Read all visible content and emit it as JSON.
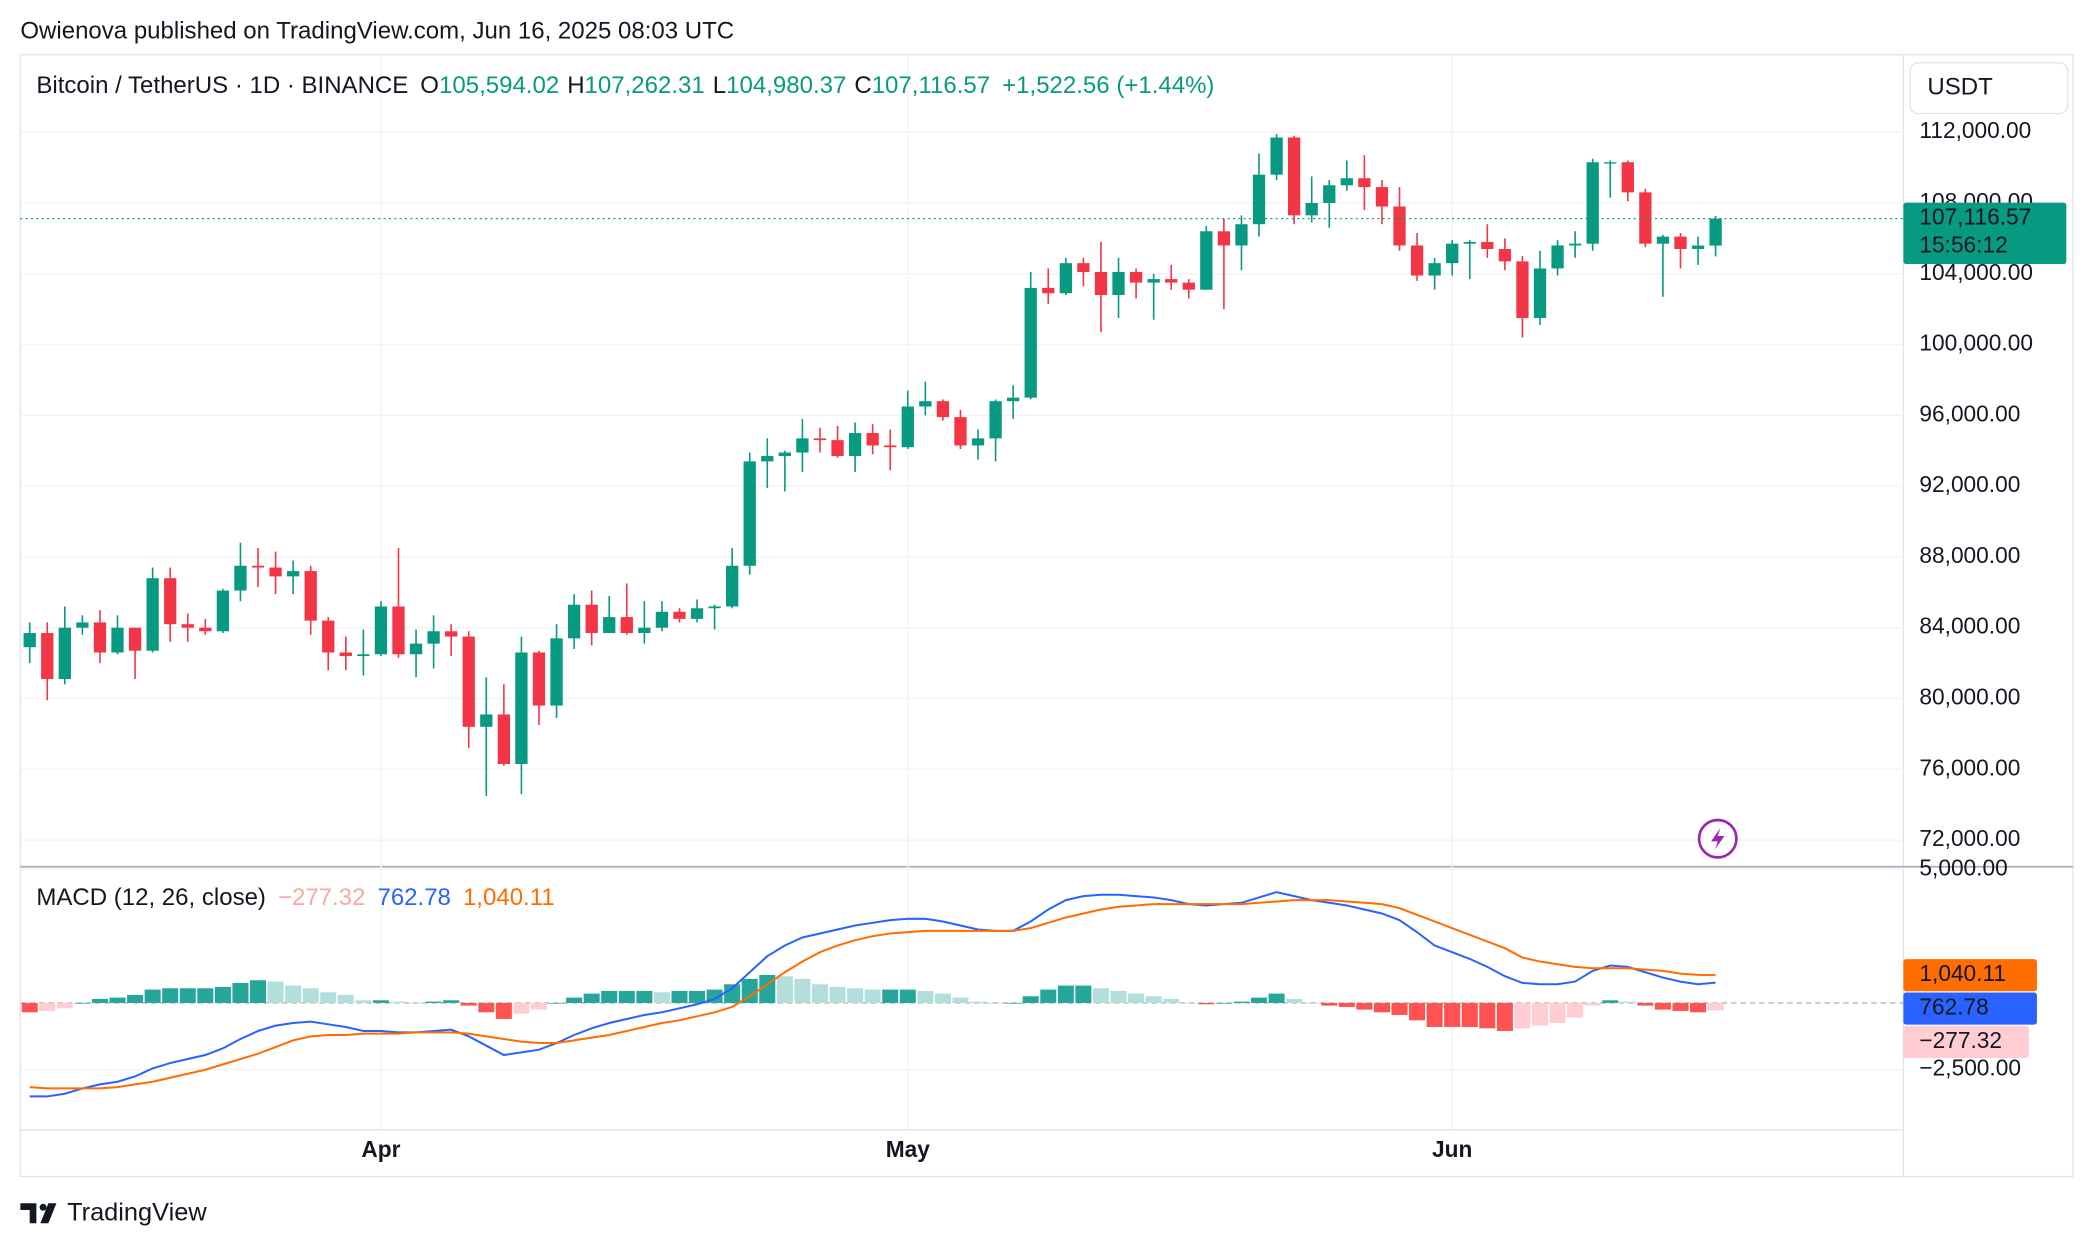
{
  "header": {
    "publisher": "Owienova published on TradingView.com, Jun 16, 2025 08:03 UTC",
    "symbol": "Bitcoin / TetherUS · 1D · BINANCE",
    "ohlc_legend": [
      {
        "key": "O",
        "text": "105,594.02"
      },
      {
        "key": "H",
        "text": "107,262.31"
      },
      {
        "key": "L",
        "text": "104,980.37"
      },
      {
        "key": "C",
        "text": "107,116.57"
      }
    ],
    "change": "+1,522.56 (+1.44%)",
    "currency": "USDT",
    "countdown": "15:56:12"
  },
  "footer": {
    "brand": "TradingView"
  },
  "chart_data": [
    {
      "type": "candlestick",
      "up_color": "#089981",
      "down_color": "#f23645",
      "grid": true,
      "ylim": [
        70570,
        116300
      ],
      "yticks": [
        {
          "value": 112000,
          "label": "112,000.00"
        },
        {
          "value": 108000,
          "label": "108,000.00"
        },
        {
          "value": 104000,
          "label": "104,000.00"
        },
        {
          "value": 100000,
          "label": "100,000.00"
        },
        {
          "value": 96000,
          "label": "96,000.00"
        },
        {
          "value": 92000,
          "label": "92,000.00"
        },
        {
          "value": 88000,
          "label": "88,000.00"
        },
        {
          "value": 84000,
          "label": "84,000.00"
        },
        {
          "value": 80000,
          "label": "80,000.00"
        },
        {
          "value": 76000,
          "label": "76,000.00"
        },
        {
          "value": 72000,
          "label": "72,000.00"
        }
      ],
      "xticks": [
        {
          "value": 20,
          "label": "Apr"
        },
        {
          "value": 50,
          "label": "May"
        },
        {
          "value": 81,
          "label": "Jun"
        }
      ],
      "last_price_label": "107,116.57",
      "open": [
        82900,
        83700,
        81100,
        84000,
        84300,
        82600,
        84000,
        82700,
        86800,
        84200,
        84000,
        83800,
        86100,
        87500,
        87400,
        86900,
        87200,
        84400,
        82600,
        82400,
        82500,
        85200,
        82500,
        83100,
        83800,
        83500,
        78400,
        79100,
        76300,
        82600,
        79600,
        83400,
        85300,
        83700,
        84600,
        83700,
        84000,
        84900,
        84500,
        85100,
        85200,
        87500,
        93400,
        93700,
        93900,
        94700,
        94600,
        93700,
        95000,
        94300,
        94200,
        96500,
        96800,
        95900,
        94300,
        94700,
        96800,
        97000,
        103200,
        102900,
        104600,
        104100,
        102800,
        104100,
        103500,
        103700,
        103500,
        103100,
        106400,
        105600,
        106800,
        109600,
        111700,
        107300,
        108000,
        109000,
        109400,
        108900,
        107800,
        105600,
        103900,
        104600,
        105700,
        105800,
        105400,
        104700,
        101500,
        104300,
        105600,
        105700,
        110250,
        110300,
        108600,
        105700,
        106100,
        105400,
        105594.02
      ],
      "high": [
        84300,
        84300,
        85200,
        84700,
        85000,
        84700,
        84000,
        87400,
        87400,
        84800,
        84500,
        86200,
        88800,
        88500,
        88300,
        87800,
        87500,
        84600,
        83500,
        83900,
        85500,
        88500,
        83900,
        84700,
        84200,
        83800,
        81200,
        80800,
        83500,
        82700,
        84200,
        85900,
        86100,
        85800,
        86500,
        85500,
        85500,
        85100,
        85600,
        85300,
        88500,
        93900,
        94700,
        94000,
        95800,
        95300,
        95400,
        95600,
        95500,
        95200,
        97400,
        97900,
        96900,
        96300,
        95200,
        96900,
        97700,
        104100,
        104300,
        104900,
        104900,
        105800,
        104900,
        104300,
        104000,
        104500,
        103700,
        106700,
        107100,
        107300,
        110800,
        111900,
        111800,
        109500,
        109300,
        110400,
        110700,
        109300,
        108900,
        106300,
        104900,
        105900,
        105900,
        106800,
        106000,
        105000,
        105300,
        105900,
        106400,
        110500,
        110400,
        110400,
        108800,
        106200,
        106300,
        106100,
        107262.31
      ],
      "low": [
        82000,
        79900,
        80800,
        83600,
        82000,
        82500,
        81100,
        82600,
        83200,
        83200,
        83600,
        83700,
        85500,
        86300,
        85900,
        85900,
        83600,
        81600,
        81600,
        81300,
        82400,
        82300,
        81200,
        81700,
        82400,
        77200,
        74500,
        76200,
        74600,
        78500,
        78900,
        82800,
        83000,
        83700,
        83600,
        83100,
        83800,
        84300,
        84300,
        83900,
        85100,
        87000,
        91900,
        91700,
        92800,
        93900,
        93600,
        92800,
        93800,
        92900,
        94100,
        96000,
        95700,
        94100,
        93500,
        93400,
        95800,
        96900,
        102300,
        102800,
        103300,
        100700,
        101500,
        102600,
        101400,
        103100,
        102600,
        103100,
        102000,
        104200,
        106100,
        109300,
        106800,
        106900,
        106600,
        108700,
        107600,
        106800,
        105300,
        103600,
        103100,
        103900,
        103700,
        104900,
        104200,
        100400,
        101100,
        103900,
        104900,
        105300,
        108300,
        108100,
        105500,
        102700,
        104300,
        104500,
        104980.37
      ],
      "close": [
        83700,
        81100,
        84000,
        84300,
        82600,
        84000,
        82700,
        86800,
        84200,
        84000,
        83800,
        86100,
        87500,
        87400,
        86900,
        87200,
        84400,
        82600,
        82400,
        82500,
        85200,
        82500,
        83100,
        83800,
        83500,
        78400,
        79100,
        76300,
        82600,
        79600,
        83400,
        85300,
        83700,
        84600,
        83700,
        84000,
        84900,
        84500,
        85100,
        85200,
        87500,
        93400,
        93700,
        93900,
        94700,
        94600,
        93700,
        95000,
        94300,
        94200,
        96500,
        96800,
        95900,
        94300,
        94700,
        96800,
        97000,
        103200,
        102900,
        104600,
        104100,
        102800,
        104100,
        103500,
        103700,
        103500,
        103100,
        106400,
        105600,
        106800,
        109600,
        111700,
        107300,
        108000,
        109000,
        109400,
        108900,
        107800,
        105600,
        103900,
        104600,
        105700,
        105800,
        105400,
        104700,
        101500,
        104300,
        105600,
        105700,
        110300,
        110300,
        108600,
        105700,
        106100,
        105400,
        105594.02,
        107116.57
      ]
    },
    {
      "type": "macd",
      "title": "MACD (12, 26, close)",
      "y2lim": [
        -4700,
        5050
      ],
      "y2ticks": [
        {
          "value": 5000,
          "label": "5,000.00"
        },
        {
          "value": -2500,
          "label": "−2,500.00"
        }
      ],
      "series": [
        {
          "name": "Histogram",
          "kind": "histogram",
          "colors": {
            "up_strong": "#26a69a",
            "up_weak": "#b2dfdb",
            "down_strong": "#ff5252",
            "down_weak": "#ffcdd2"
          },
          "color": "#f7a9a7",
          "last_value_label": "−277.32",
          "values": [
            -350,
            -300,
            -200,
            0,
            150,
            200,
            300,
            500,
            550,
            550,
            550,
            600,
            750,
            850,
            800,
            650,
            550,
            400,
            300,
            100,
            100,
            50,
            0,
            50,
            100,
            -100,
            -350,
            -600,
            -400,
            -250,
            0,
            200,
            350,
            450,
            450,
            450,
            400,
            450,
            450,
            500,
            700,
            900,
            1050,
            1000,
            900,
            700,
            600,
            550,
            500,
            500,
            500,
            450,
            350,
            200,
            50,
            0,
            0,
            250,
            500,
            650,
            650,
            550,
            450,
            350,
            250,
            150,
            0,
            -50,
            0,
            50,
            200,
            350,
            150,
            0,
            -100,
            -150,
            -250,
            -350,
            -450,
            -650,
            -900,
            -900,
            -900,
            -950,
            -1050,
            -950,
            -850,
            -750,
            -550,
            -100,
            100,
            50,
            -100,
            -250,
            -300,
            -350,
            -277.32
          ]
        },
        {
          "name": "MACD",
          "kind": "line",
          "color": "#2962ff",
          "last_value_label": "762.78",
          "values": [
            -3500,
            -3500,
            -3400,
            -3200,
            -3050,
            -2950,
            -2750,
            -2450,
            -2250,
            -2100,
            -1950,
            -1700,
            -1350,
            -1050,
            -850,
            -750,
            -700,
            -800,
            -900,
            -1050,
            -1050,
            -1100,
            -1100,
            -1050,
            -1000,
            -1250,
            -1600,
            -1950,
            -1850,
            -1750,
            -1500,
            -1200,
            -950,
            -750,
            -600,
            -450,
            -350,
            -200,
            -50,
            150,
            550,
            1150,
            1750,
            2150,
            2450,
            2600,
            2750,
            2900,
            3000,
            3100,
            3150,
            3150,
            3050,
            2900,
            2750,
            2700,
            2700,
            3050,
            3500,
            3850,
            4000,
            4050,
            4050,
            4000,
            3950,
            3850,
            3700,
            3650,
            3700,
            3750,
            3950,
            4150,
            4000,
            3850,
            3750,
            3650,
            3500,
            3350,
            3100,
            2650,
            2150,
            1900,
            1650,
            1350,
            1000,
            750,
            700,
            700,
            800,
            1200,
            1400,
            1350,
            1150,
            950,
            800,
            700,
            762.78
          ]
        },
        {
          "name": "Signal",
          "kind": "line",
          "color": "#ff6d00",
          "last_value_label": "1,040.11",
          "values": [
            -3150,
            -3200,
            -3200,
            -3200,
            -3200,
            -3150,
            -3050,
            -2950,
            -2800,
            -2650,
            -2500,
            -2300,
            -2100,
            -1900,
            -1650,
            -1400,
            -1250,
            -1200,
            -1200,
            -1150,
            -1150,
            -1150,
            -1100,
            -1100,
            -1100,
            -1150,
            -1250,
            -1350,
            -1450,
            -1500,
            -1500,
            -1400,
            -1300,
            -1200,
            -1050,
            -900,
            -750,
            -650,
            -500,
            -350,
            -150,
            250,
            700,
            1150,
            1550,
            1900,
            2150,
            2350,
            2500,
            2600,
            2650,
            2700,
            2700,
            2700,
            2700,
            2700,
            2700,
            2800,
            3000,
            3200,
            3350,
            3500,
            3600,
            3650,
            3700,
            3700,
            3700,
            3700,
            3700,
            3700,
            3750,
            3800,
            3850,
            3850,
            3850,
            3800,
            3750,
            3700,
            3550,
            3300,
            3050,
            2800,
            2550,
            2300,
            2050,
            1700,
            1550,
            1450,
            1350,
            1300,
            1300,
            1300,
            1250,
            1200,
            1100,
            1050,
            1040.11
          ]
        }
      ]
    }
  ]
}
